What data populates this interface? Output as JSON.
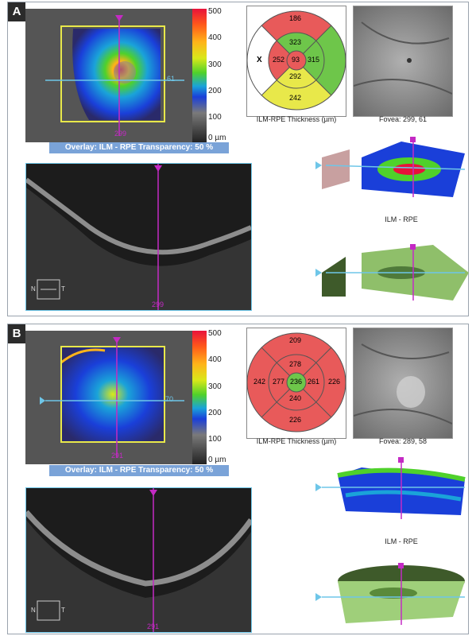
{
  "panels": [
    {
      "label": "A",
      "colorbar": {
        "ticks": [
          "500",
          "400",
          "300",
          "200",
          "100",
          "0 µm"
        ]
      },
      "fundus": {
        "vertical_marker": "299",
        "horizontal_marker": "61"
      },
      "overlay_label": "Overlay: ILM - RPE  Transparency: 50 %",
      "bscan": {
        "marker_value": "299",
        "orientation": {
          "left": "N",
          "right": "T"
        }
      },
      "thickness_map": {
        "caption": "ILM-RPE Thickness (µm)",
        "outer": {
          "superior": "186",
          "nasal": "X",
          "inferior": "242",
          "temporal": ""
        },
        "inner": {
          "superior": "323",
          "nasal": "252",
          "inferior": "292",
          "temporal": "315"
        },
        "center": "93",
        "colors": {
          "outer_sup": "#e85a5a",
          "outer_nasal": "#ffffff",
          "outer_inf": "#e8e84a",
          "outer_temp": "#6ec64a",
          "inner_sup": "#6ec64a",
          "inner_nasal": "#e85a5a",
          "inner_inf": "#e8e84a",
          "inner_temp": "#6ec64a",
          "center": "#e85a5a"
        }
      },
      "fovea_caption": "Fovea: 299, 61",
      "surface_caption": "ILM - RPE"
    },
    {
      "label": "B",
      "colorbar": {
        "ticks": [
          "500",
          "400",
          "300",
          "200",
          "100",
          "0 µm"
        ]
      },
      "fundus": {
        "vertical_marker": "291",
        "horizontal_marker": "70"
      },
      "overlay_label": "Overlay: ILM - RPE  Transparency: 50 %",
      "bscan": {
        "marker_value": "291",
        "orientation": {
          "left": "N",
          "right": "T"
        }
      },
      "thickness_map": {
        "caption": "ILM-RPE Thickness (µm)",
        "outer": {
          "superior": "209",
          "nasal": "242",
          "inferior": "226",
          "temporal": "226"
        },
        "inner": {
          "superior": "278",
          "nasal": "277",
          "inferior": "240",
          "temporal": "261"
        },
        "center": "236",
        "colors": {
          "outer_sup": "#e85a5a",
          "outer_nasal": "#e85a5a",
          "outer_inf": "#e85a5a",
          "outer_temp": "#e85a5a",
          "inner_sup": "#e85a5a",
          "inner_nasal": "#e85a5a",
          "inner_inf": "#e85a5a",
          "inner_temp": "#e85a5a",
          "center": "#6ec64a"
        }
      },
      "fovea_caption": "Fovea: 289, 58",
      "surface_caption": "ILM - RPE"
    }
  ],
  "colors": {
    "marker": "#c42ac4",
    "hline": "#6ec6e8",
    "roi": "#e8e84a",
    "overlay_bar": "#7aa3d8"
  }
}
